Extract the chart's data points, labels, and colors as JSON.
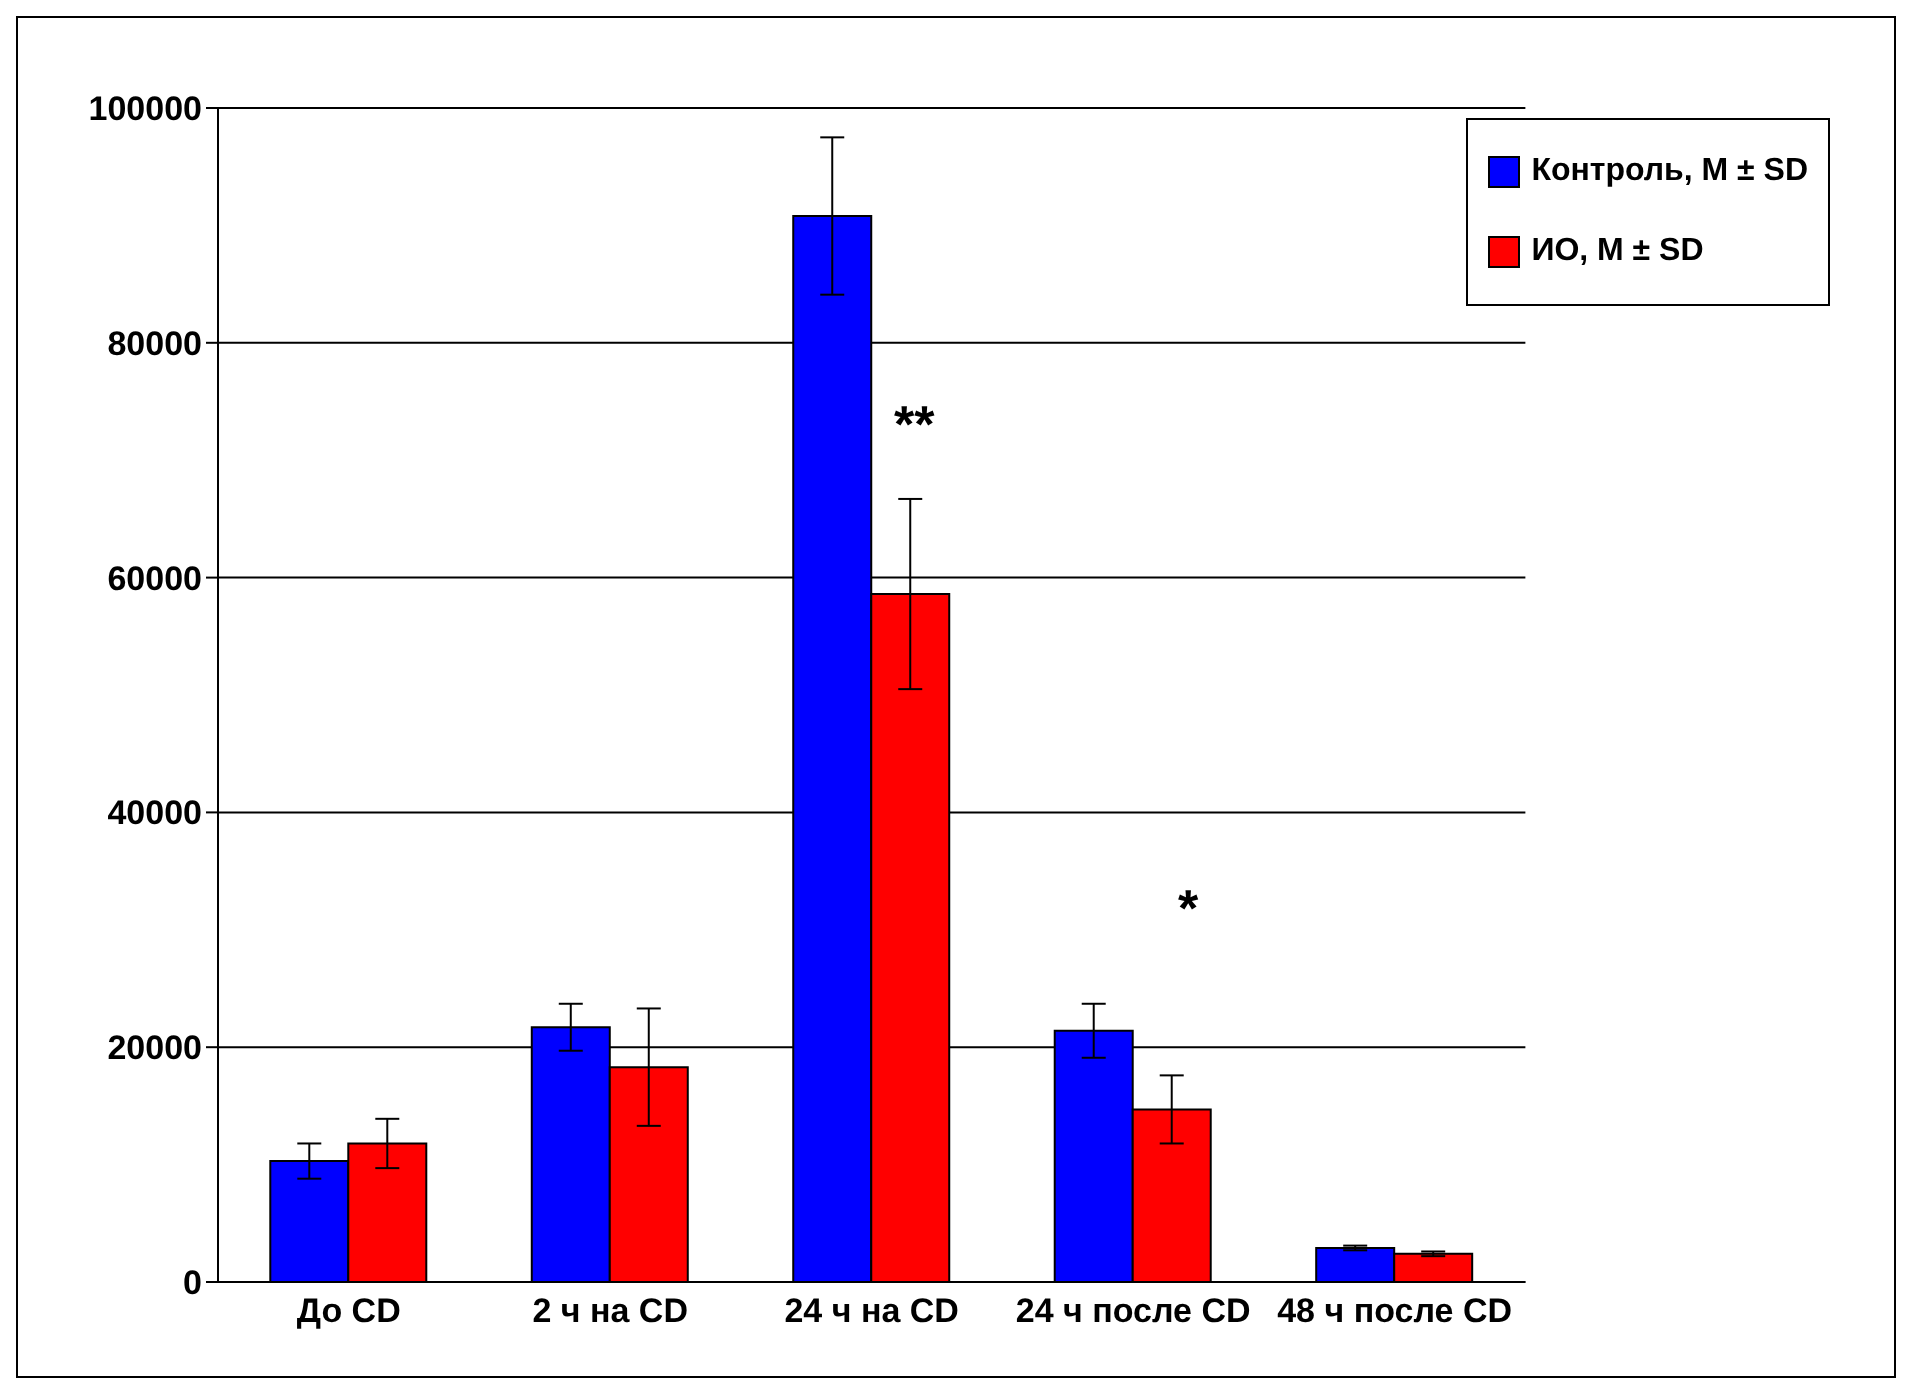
{
  "chart_data": {
    "type": "bar",
    "categories": [
      "До CD",
      "2 ч на CD",
      "24 ч на CD",
      "24 ч после CD",
      "48 ч после CD"
    ],
    "series": [
      {
        "name": "Контроль, M ± SD",
        "color": "#0000ff",
        "values": [
          10300,
          21700,
          90800,
          21400,
          2900
        ],
        "errors": [
          1500,
          2000,
          6700,
          2300,
          200
        ]
      },
      {
        "name": "ИО, M ± SD",
        "color": "#ff0000",
        "values": [
          11800,
          18300,
          58600,
          14700,
          2400
        ],
        "errors": [
          2100,
          5000,
          8100,
          2900,
          200
        ]
      }
    ],
    "ylim": [
      0,
      100000
    ],
    "yticks": [
      0,
      20000,
      40000,
      60000,
      80000,
      100000
    ],
    "grid": "y",
    "legend": "top right",
    "annotations": [
      "**",
      "*"
    ]
  }
}
